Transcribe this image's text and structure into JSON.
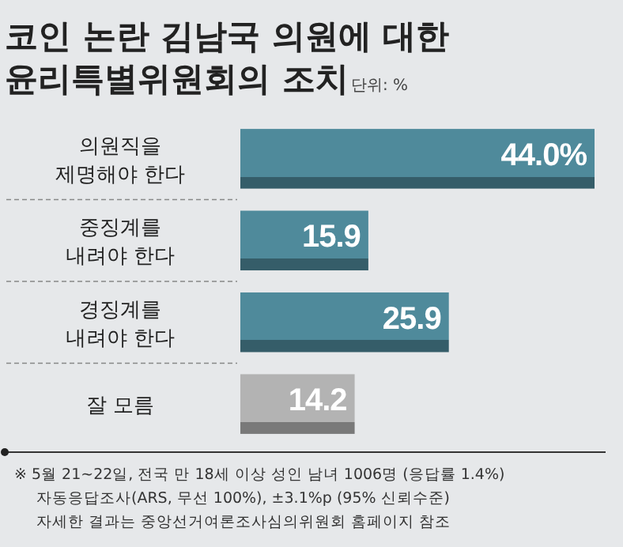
{
  "chart_data": {
    "type": "bar",
    "orientation": "horizontal",
    "title": "코인 논란 김남국 의원에 대한\n윤리특별위원회의 조치",
    "subtitle": "단위: %",
    "categories": [
      "의원직을\n제명해야 한다",
      "중징계를\n내려야 한다",
      "경징계를\n내려야 한다",
      "잘 모름"
    ],
    "values": [
      44.0,
      15.9,
      25.9,
      14.2
    ],
    "value_labels": [
      "44.0%",
      "15.9",
      "25.9",
      "14.2"
    ],
    "colors": [
      "#4f8a9b",
      "#4f8a9b",
      "#4f8a9b",
      "#b3b3b3"
    ],
    "annotations": [
      "※ 5월 21~22일, 전국 만 18세 이상 성인 남녀 1006명 (응답률 1.4%)",
      "자동응답조사(ARS, 무선 100%), ±3.1%p (95% 신뢰수준)",
      "자세한 결과는 중앙선거여론조사심의위원회 홈페이지 참조"
    ]
  }
}
